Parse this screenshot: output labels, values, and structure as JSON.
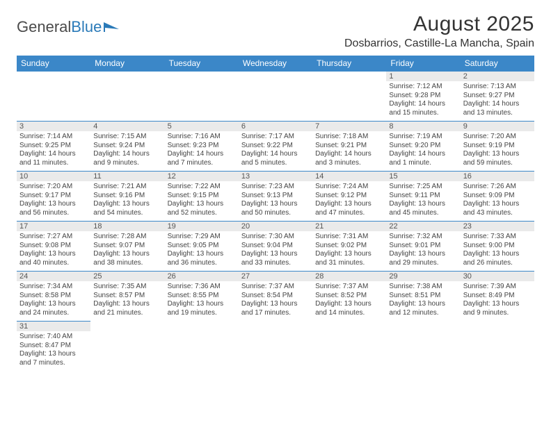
{
  "logo": {
    "text_a": "General",
    "text_b": "Blue",
    "triangle_color": "#2a7ab8"
  },
  "title": "August 2025",
  "location": "Dosbarrios, Castille-La Mancha, Spain",
  "header_bg": "#3b87c8",
  "header_fg": "#ffffff",
  "daynum_bg": "#eaeaea",
  "border_color": "#3b87c8",
  "weekdays": [
    "Sunday",
    "Monday",
    "Tuesday",
    "Wednesday",
    "Thursday",
    "Friday",
    "Saturday"
  ],
  "weeks": [
    [
      null,
      null,
      null,
      null,
      null,
      {
        "n": "1",
        "sr": "Sunrise: 7:12 AM",
        "ss": "Sunset: 9:28 PM",
        "dl1": "Daylight: 14 hours",
        "dl2": "and 15 minutes."
      },
      {
        "n": "2",
        "sr": "Sunrise: 7:13 AM",
        "ss": "Sunset: 9:27 PM",
        "dl1": "Daylight: 14 hours",
        "dl2": "and 13 minutes."
      }
    ],
    [
      {
        "n": "3",
        "sr": "Sunrise: 7:14 AM",
        "ss": "Sunset: 9:25 PM",
        "dl1": "Daylight: 14 hours",
        "dl2": "and 11 minutes."
      },
      {
        "n": "4",
        "sr": "Sunrise: 7:15 AM",
        "ss": "Sunset: 9:24 PM",
        "dl1": "Daylight: 14 hours",
        "dl2": "and 9 minutes."
      },
      {
        "n": "5",
        "sr": "Sunrise: 7:16 AM",
        "ss": "Sunset: 9:23 PM",
        "dl1": "Daylight: 14 hours",
        "dl2": "and 7 minutes."
      },
      {
        "n": "6",
        "sr": "Sunrise: 7:17 AM",
        "ss": "Sunset: 9:22 PM",
        "dl1": "Daylight: 14 hours",
        "dl2": "and 5 minutes."
      },
      {
        "n": "7",
        "sr": "Sunrise: 7:18 AM",
        "ss": "Sunset: 9:21 PM",
        "dl1": "Daylight: 14 hours",
        "dl2": "and 3 minutes."
      },
      {
        "n": "8",
        "sr": "Sunrise: 7:19 AM",
        "ss": "Sunset: 9:20 PM",
        "dl1": "Daylight: 14 hours",
        "dl2": "and 1 minute."
      },
      {
        "n": "9",
        "sr": "Sunrise: 7:20 AM",
        "ss": "Sunset: 9:19 PM",
        "dl1": "Daylight: 13 hours",
        "dl2": "and 59 minutes."
      }
    ],
    [
      {
        "n": "10",
        "sr": "Sunrise: 7:20 AM",
        "ss": "Sunset: 9:17 PM",
        "dl1": "Daylight: 13 hours",
        "dl2": "and 56 minutes."
      },
      {
        "n": "11",
        "sr": "Sunrise: 7:21 AM",
        "ss": "Sunset: 9:16 PM",
        "dl1": "Daylight: 13 hours",
        "dl2": "and 54 minutes."
      },
      {
        "n": "12",
        "sr": "Sunrise: 7:22 AM",
        "ss": "Sunset: 9:15 PM",
        "dl1": "Daylight: 13 hours",
        "dl2": "and 52 minutes."
      },
      {
        "n": "13",
        "sr": "Sunrise: 7:23 AM",
        "ss": "Sunset: 9:13 PM",
        "dl1": "Daylight: 13 hours",
        "dl2": "and 50 minutes."
      },
      {
        "n": "14",
        "sr": "Sunrise: 7:24 AM",
        "ss": "Sunset: 9:12 PM",
        "dl1": "Daylight: 13 hours",
        "dl2": "and 47 minutes."
      },
      {
        "n": "15",
        "sr": "Sunrise: 7:25 AM",
        "ss": "Sunset: 9:11 PM",
        "dl1": "Daylight: 13 hours",
        "dl2": "and 45 minutes."
      },
      {
        "n": "16",
        "sr": "Sunrise: 7:26 AM",
        "ss": "Sunset: 9:09 PM",
        "dl1": "Daylight: 13 hours",
        "dl2": "and 43 minutes."
      }
    ],
    [
      {
        "n": "17",
        "sr": "Sunrise: 7:27 AM",
        "ss": "Sunset: 9:08 PM",
        "dl1": "Daylight: 13 hours",
        "dl2": "and 40 minutes."
      },
      {
        "n": "18",
        "sr": "Sunrise: 7:28 AM",
        "ss": "Sunset: 9:07 PM",
        "dl1": "Daylight: 13 hours",
        "dl2": "and 38 minutes."
      },
      {
        "n": "19",
        "sr": "Sunrise: 7:29 AM",
        "ss": "Sunset: 9:05 PM",
        "dl1": "Daylight: 13 hours",
        "dl2": "and 36 minutes."
      },
      {
        "n": "20",
        "sr": "Sunrise: 7:30 AM",
        "ss": "Sunset: 9:04 PM",
        "dl1": "Daylight: 13 hours",
        "dl2": "and 33 minutes."
      },
      {
        "n": "21",
        "sr": "Sunrise: 7:31 AM",
        "ss": "Sunset: 9:02 PM",
        "dl1": "Daylight: 13 hours",
        "dl2": "and 31 minutes."
      },
      {
        "n": "22",
        "sr": "Sunrise: 7:32 AM",
        "ss": "Sunset: 9:01 PM",
        "dl1": "Daylight: 13 hours",
        "dl2": "and 29 minutes."
      },
      {
        "n": "23",
        "sr": "Sunrise: 7:33 AM",
        "ss": "Sunset: 9:00 PM",
        "dl1": "Daylight: 13 hours",
        "dl2": "and 26 minutes."
      }
    ],
    [
      {
        "n": "24",
        "sr": "Sunrise: 7:34 AM",
        "ss": "Sunset: 8:58 PM",
        "dl1": "Daylight: 13 hours",
        "dl2": "and 24 minutes."
      },
      {
        "n": "25",
        "sr": "Sunrise: 7:35 AM",
        "ss": "Sunset: 8:57 PM",
        "dl1": "Daylight: 13 hours",
        "dl2": "and 21 minutes."
      },
      {
        "n": "26",
        "sr": "Sunrise: 7:36 AM",
        "ss": "Sunset: 8:55 PM",
        "dl1": "Daylight: 13 hours",
        "dl2": "and 19 minutes."
      },
      {
        "n": "27",
        "sr": "Sunrise: 7:37 AM",
        "ss": "Sunset: 8:54 PM",
        "dl1": "Daylight: 13 hours",
        "dl2": "and 17 minutes."
      },
      {
        "n": "28",
        "sr": "Sunrise: 7:37 AM",
        "ss": "Sunset: 8:52 PM",
        "dl1": "Daylight: 13 hours",
        "dl2": "and 14 minutes."
      },
      {
        "n": "29",
        "sr": "Sunrise: 7:38 AM",
        "ss": "Sunset: 8:51 PM",
        "dl1": "Daylight: 13 hours",
        "dl2": "and 12 minutes."
      },
      {
        "n": "30",
        "sr": "Sunrise: 7:39 AM",
        "ss": "Sunset: 8:49 PM",
        "dl1": "Daylight: 13 hours",
        "dl2": "and 9 minutes."
      }
    ],
    [
      {
        "n": "31",
        "sr": "Sunrise: 7:40 AM",
        "ss": "Sunset: 8:47 PM",
        "dl1": "Daylight: 13 hours",
        "dl2": "and 7 minutes."
      },
      null,
      null,
      null,
      null,
      null,
      null
    ]
  ]
}
